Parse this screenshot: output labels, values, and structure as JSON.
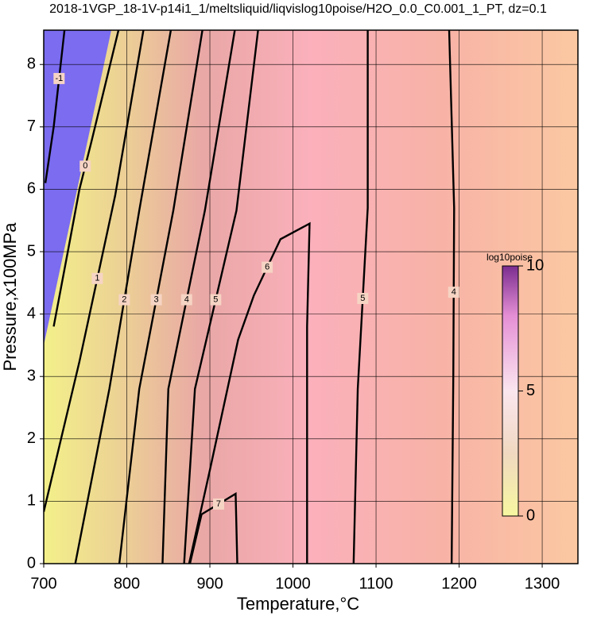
{
  "chart_data": {
    "type": "contour",
    "title": "2018-1VGP_18-1V-p14i1_1/meltsliquid/liqvislog10poise/H2O_0.0_C0.001_1_PT, dz=0.1",
    "xlabel": "Temperature,°C",
    "ylabel": "Pressure,x100MPa",
    "xlim": [
      700,
      1343
    ],
    "ylim": [
      0,
      8.55
    ],
    "xticks": [
      700,
      800,
      900,
      1000,
      1100,
      1200,
      1300
    ],
    "yticks": [
      0,
      1,
      2,
      3,
      4,
      5,
      6,
      7,
      8
    ],
    "grid": true,
    "line_color": "#000000",
    "contours": [
      {
        "level": -1,
        "x": [
          702,
          712,
          725
        ],
        "y": [
          6.1,
          7.0,
          8.55
        ]
      },
      {
        "level": 0,
        "x": [
          712,
          729,
          743,
          757,
          790
        ],
        "y": [
          3.8,
          5.0,
          6.0,
          6.74,
          8.55
        ]
      },
      {
        "level": 1,
        "x": [
          700,
          743,
          786,
          820
        ],
        "y": [
          0.83,
          3.24,
          5.9,
          8.55
        ]
      },
      {
        "level": 2,
        "x": [
          738,
          779,
          815,
          853
        ],
        "y": [
          0,
          2.8,
          5.66,
          8.55
        ]
      },
      {
        "level": 3,
        "x": [
          791,
          815,
          856,
          891
        ],
        "y": [
          0,
          2.8,
          5.66,
          8.55
        ]
      },
      {
        "level": 4,
        "x": [
          843,
          850,
          894,
          930
        ],
        "y": [
          0,
          2.8,
          5.66,
          8.55
        ]
      },
      {
        "level": 5,
        "x": [
          869,
          882,
          932,
          958
        ],
        "y": [
          0,
          2.8,
          5.66,
          8.55
        ]
      },
      {
        "level": 6,
        "x": [
          875,
          900,
          934,
          953,
          985,
          1020,
          1017,
          1017
        ],
        "y": [
          0,
          1.5,
          3.59,
          4.3,
          5.2,
          5.45,
          3.8,
          0
        ]
      },
      {
        "level": 7,
        "x": [
          876,
          890,
          931,
          933
        ],
        "y": [
          0,
          0.79,
          1.12,
          0
        ]
      },
      {
        "level": 5,
        "x": [
          1073,
          1078,
          1090,
          1090
        ],
        "y": [
          0,
          2.8,
          5.7,
          8.55
        ]
      },
      {
        "level": 4,
        "x": [
          1191,
          1193,
          1194,
          1188
        ],
        "y": [
          0,
          3.0,
          5.7,
          8.55
        ]
      }
    ],
    "colorbar": {
      "label": "log10poise",
      "lim": [
        0,
        10
      ],
      "ticks": [
        0,
        5,
        10
      ]
    }
  }
}
